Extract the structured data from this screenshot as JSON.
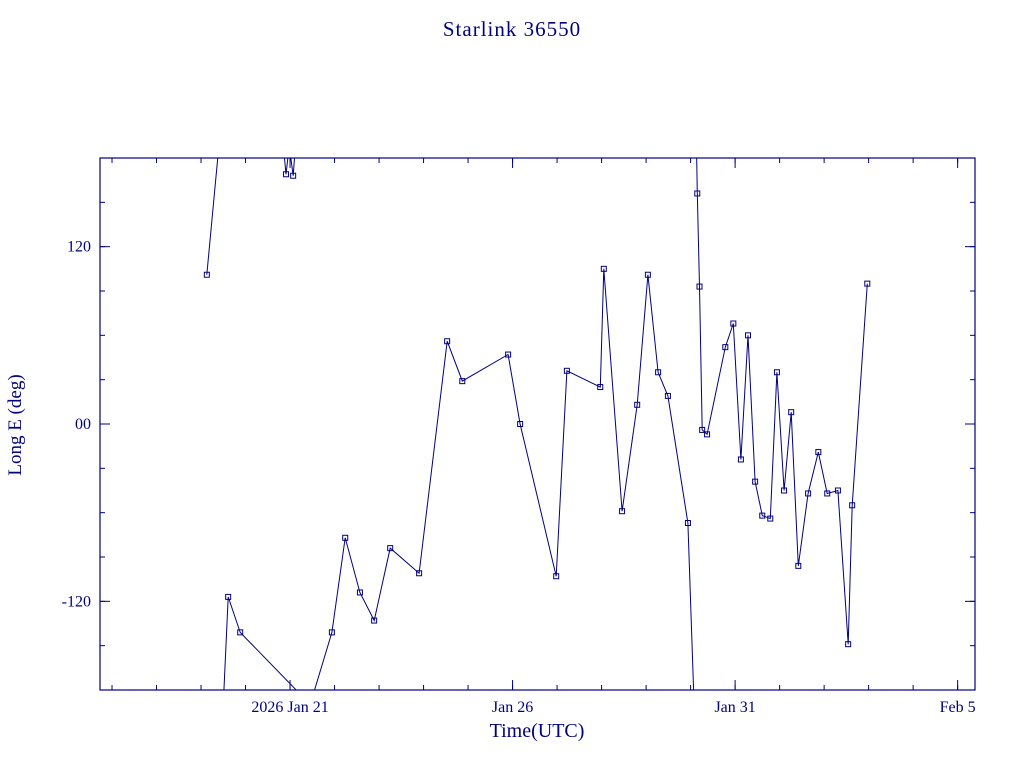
{
  "page": {
    "background": "#ffffff",
    "accent": "#000080"
  },
  "chart_data": {
    "type": "line",
    "title": "Starlink 36550",
    "xlabel": "Time(UTC)",
    "ylabel": "Long E (deg)",
    "x_unit": "days, where day 5 = 2026 Jan 21 (1 minor tick = 1 day)",
    "xlim": [
      0.73,
      20.39
    ],
    "ylim": [
      -180,
      180
    ],
    "grid": false,
    "legend": "none",
    "line_color": "#000080",
    "marker": "open-square",
    "x_major_ticks": [
      {
        "day": 5,
        "label": "2026 Jan 21"
      },
      {
        "day": 10,
        "label": "Jan 26"
      },
      {
        "day": 15,
        "label": "Jan 31"
      },
      {
        "day": 20,
        "label": "Feb 5"
      }
    ],
    "x_minor_tick_step_days": 1,
    "y_major_ticks": [
      {
        "value": -120,
        "label": "-120"
      },
      {
        "value": 0,
        "label": "00"
      },
      {
        "value": 120,
        "label": "120"
      }
    ],
    "y_minor_tick_step_deg": 30,
    "series": [
      {
        "name": "Starlink 36550 longitude east",
        "note": "values beyond +/-180 are wrap sentinels (line exits plot, no marker)",
        "segments": [
          {
            "points": [
              [
                3.13,
                101
              ],
              [
                3.47,
                210
              ]
            ]
          },
          {
            "points": [
              [
                3.47,
                -210
              ],
              [
                3.61,
                -117
              ],
              [
                3.88,
                -141
              ],
              [
                5.3,
                -185
              ]
            ]
          },
          {
            "points": [
              [
                4.8,
                205
              ],
              [
                4.91,
                169
              ],
              [
                4.98,
                188
              ],
              [
                5.07,
                168
              ],
              [
                5.16,
                205
              ]
            ]
          },
          {
            "points": [
              [
                5.45,
                -190
              ],
              [
                5.94,
                -141
              ],
              [
                6.24,
                -77
              ],
              [
                6.57,
                -114
              ],
              [
                6.89,
                -133
              ],
              [
                7.25,
                -84
              ],
              [
                7.9,
                -101
              ],
              [
                8.53,
                56
              ],
              [
                8.87,
                29
              ],
              [
                9.9,
                47
              ],
              [
                10.17,
                0
              ],
              [
                10.98,
                -103
              ],
              [
                11.22,
                36
              ],
              [
                11.97,
                25
              ],
              [
                12.05,
                105
              ],
              [
                12.46,
                -59
              ],
              [
                12.8,
                13
              ],
              [
                13.04,
                101
              ],
              [
                13.27,
                35
              ],
              [
                13.49,
                19
              ],
              [
                13.94,
                -67
              ],
              [
                14.1,
                -210
              ]
            ]
          },
          {
            "points": [
              [
                14.12,
                210
              ],
              [
                14.15,
                156
              ],
              [
                14.2,
                93
              ],
              [
                14.26,
                -4
              ],
              [
                14.37,
                -7
              ],
              [
                14.78,
                52
              ],
              [
                14.96,
                68
              ],
              [
                15.13,
                -24
              ],
              [
                15.29,
                60
              ],
              [
                15.45,
                -39
              ],
              [
                15.61,
                -62
              ],
              [
                15.79,
                -64
              ],
              [
                15.94,
                35
              ],
              [
                16.1,
                -45
              ],
              [
                16.26,
                8
              ],
              [
                16.42,
                -96
              ],
              [
                16.64,
                -47
              ],
              [
                16.87,
                -19
              ],
              [
                17.07,
                -47
              ],
              [
                17.31,
                -45
              ],
              [
                17.54,
                -149
              ],
              [
                17.63,
                -55
              ],
              [
                17.97,
                95
              ]
            ]
          }
        ]
      }
    ]
  }
}
